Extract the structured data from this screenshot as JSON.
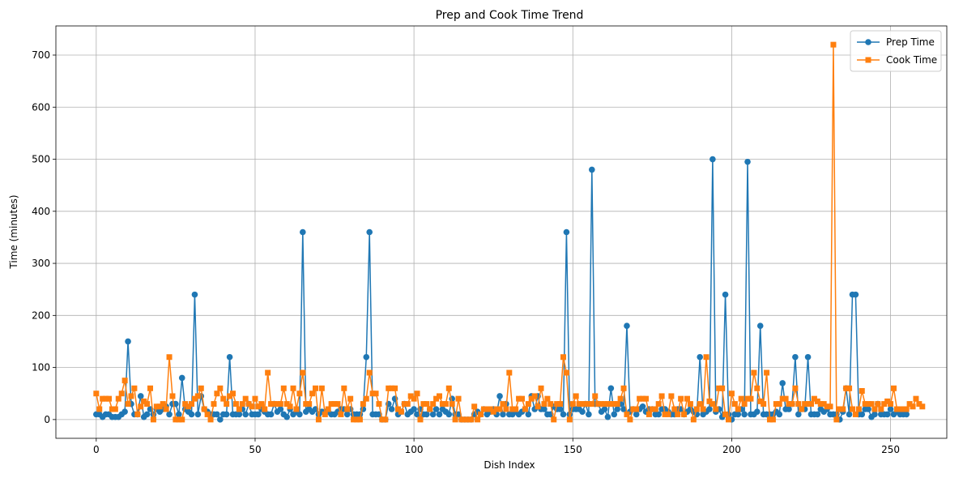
{
  "chart_data": {
    "type": "line",
    "title": "Prep and Cook Time Trend",
    "xlabel": "Dish Index",
    "ylabel": "Time (minutes)",
    "xlim": [
      -12.7,
      267.7
    ],
    "ylim": [
      -36,
      756
    ],
    "xticks": [
      0,
      50,
      100,
      150,
      200,
      250
    ],
    "yticks": [
      0,
      100,
      200,
      300,
      400,
      500,
      600,
      700
    ],
    "grid": true,
    "legend_position": "top-right",
    "series": [
      {
        "name": "Prep Time",
        "color": "#1f77b4",
        "marker": "circle",
        "values": [
          10,
          10,
          5,
          10,
          10,
          5,
          5,
          5,
          10,
          15,
          150,
          30,
          10,
          10,
          45,
          5,
          10,
          20,
          10,
          20,
          15,
          20,
          25,
          10,
          30,
          30,
          10,
          80,
          20,
          15,
          10,
          240,
          10,
          45,
          20,
          15,
          10,
          10,
          10,
          0,
          10,
          10,
          120,
          10,
          10,
          10,
          20,
          10,
          30,
          10,
          10,
          10,
          20,
          15,
          10,
          10,
          30,
          15,
          20,
          10,
          5,
          20,
          10,
          15,
          10,
          360,
          15,
          20,
          15,
          20,
          10,
          15,
          15,
          15,
          10,
          10,
          15,
          20,
          20,
          10,
          20,
          10,
          10,
          10,
          20,
          120,
          360,
          10,
          10,
          10,
          0,
          0,
          30,
          20,
          40,
          10,
          15,
          30,
          10,
          15,
          20,
          10,
          20,
          10,
          10,
          20,
          10,
          20,
          10,
          20,
          15,
          10,
          40,
          10,
          10,
          0,
          0,
          0,
          0,
          10,
          15,
          10,
          20,
          10,
          15,
          20,
          10,
          45,
          10,
          30,
          10,
          10,
          15,
          10,
          15,
          20,
          10,
          45,
          20,
          45,
          20,
          20,
          10,
          10,
          25,
          20,
          20,
          10,
          360,
          10,
          20,
          20,
          20,
          15,
          30,
          10,
          480,
          30,
          30,
          15,
          20,
          5,
          60,
          10,
          20,
          30,
          20,
          180,
          15,
          20,
          10,
          20,
          25,
          15,
          20,
          20,
          10,
          10,
          20,
          20,
          15,
          10,
          10,
          20,
          20,
          10,
          15,
          20,
          15,
          10,
          120,
          10,
          15,
          20,
          500,
          15,
          20,
          5,
          240,
          10,
          0,
          10,
          10,
          20,
          10,
          495,
          10,
          10,
          15,
          180,
          10,
          10,
          10,
          10,
          15,
          10,
          70,
          20,
          20,
          30,
          120,
          10,
          20,
          20,
          120,
          10,
          10,
          10,
          20,
          15,
          20,
          10,
          10,
          10,
          0,
          15,
          60,
          10,
          240,
          240,
          10,
          10,
          20,
          20,
          5,
          10,
          30,
          10,
          10,
          10,
          20,
          10,
          15,
          10,
          10,
          10
        ],
        "highlights": "peaks near 150 (idx 10), 240 (idx 31), 120 (idx 42), 360 (idx 65, 86, 148), 480 (idx 156), 180 (idx 167, 208), 500 (idx 193), 240 (idx 197, 238, 239), 495 (idx 204)"
      },
      {
        "name": "Cook Time",
        "color": "#ff7f0e",
        "marker": "square",
        "values": [
          50,
          20,
          40,
          40,
          40,
          20,
          20,
          40,
          50,
          75,
          30,
          45,
          60,
          10,
          25,
          35,
          30,
          60,
          0,
          25,
          25,
          30,
          20,
          120,
          45,
          0,
          0,
          0,
          30,
          25,
          30,
          40,
          45,
          60,
          20,
          10,
          0,
          30,
          50,
          60,
          40,
          30,
          45,
          50,
          30,
          20,
          30,
          40,
          30,
          25,
          40,
          25,
          30,
          20,
          90,
          30,
          30,
          30,
          30,
          60,
          30,
          25,
          60,
          20,
          50,
          90,
          30,
          30,
          50,
          60,
          0,
          60,
          10,
          20,
          30,
          30,
          30,
          10,
          60,
          20,
          40,
          0,
          0,
          0,
          30,
          40,
          90,
          50,
          50,
          30,
          0,
          0,
          60,
          60,
          60,
          20,
          15,
          30,
          30,
          45,
          40,
          50,
          0,
          30,
          30,
          20,
          30,
          40,
          45,
          30,
          30,
          60,
          30,
          0,
          40,
          0,
          0,
          0,
          0,
          25,
          0,
          10,
          20,
          20,
          20,
          15,
          20,
          20,
          30,
          20,
          90,
          20,
          20,
          40,
          40,
          20,
          30,
          40,
          45,
          25,
          60,
          30,
          40,
          30,
          0,
          30,
          30,
          120,
          90,
          0,
          30,
          45,
          30,
          30,
          30,
          30,
          30,
          45,
          30,
          30,
          30,
          30,
          30,
          30,
          30,
          40,
          60,
          10,
          0,
          20,
          20,
          40,
          40,
          40,
          10,
          20,
          20,
          30,
          45,
          10,
          10,
          45,
          20,
          10,
          40,
          10,
          40,
          30,
          0,
          20,
          30,
          20,
          120,
          35,
          30,
          20,
          60,
          60,
          10,
          0,
          50,
          30,
          20,
          40,
          30,
          40,
          40,
          90,
          60,
          35,
          30,
          90,
          0,
          0,
          30,
          30,
          40,
          40,
          30,
          30,
          60,
          30,
          20,
          30,
          30,
          30,
          40,
          35,
          30,
          30,
          25,
          25,
          720,
          0,
          20,
          20,
          60,
          60,
          20,
          10,
          20,
          55,
          30,
          30,
          30,
          20,
          30,
          20,
          30,
          35,
          30,
          60,
          20,
          20,
          20,
          20,
          30,
          25,
          40,
          30,
          25
        ]
      }
    ]
  }
}
